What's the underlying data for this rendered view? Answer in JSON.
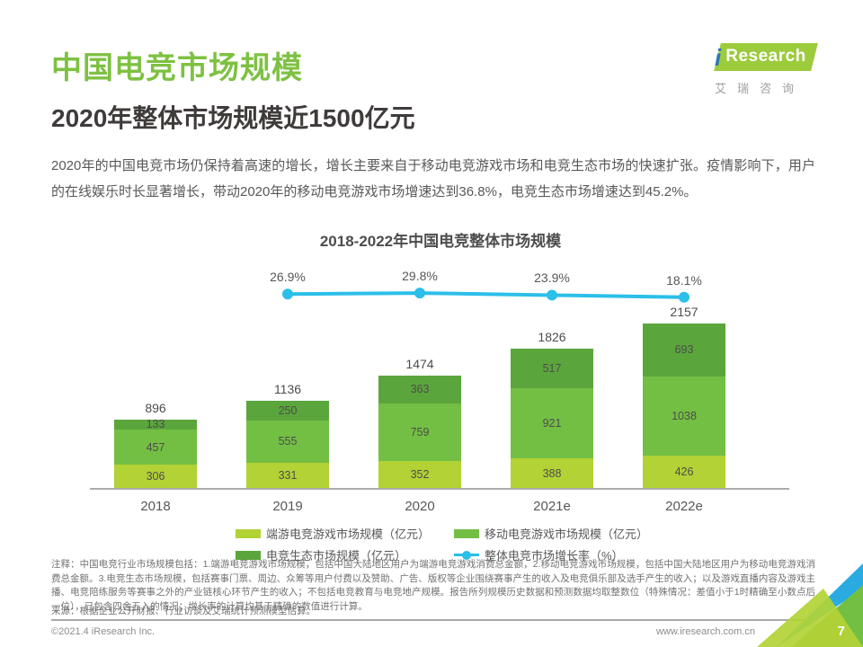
{
  "page": {
    "title": "中国电竞市场规模",
    "subtitle": "2020年整体市场规模近1500亿元",
    "body": "2020年的中国电竞市场仍保持着高速的增长，增长主要来自于移动电竞游戏市场和电竞生态市场的快速扩张。疫情影响下，用户的在线娱乐时长显著增长，带动2020年的移动电竞游戏市场增速达到36.8%，电竞生态市场增速达到45.2%。"
  },
  "logo": {
    "brand_i": "i",
    "brand_rest": "Research",
    "brand_cn": "艾瑞咨询"
  },
  "chart_data": {
    "type": "bar",
    "subtype": "stacked-bar-with-line",
    "title": "2018-2022年中国电竞整体市场规模",
    "categories": [
      "2018",
      "2019",
      "2020",
      "2021e",
      "2022e"
    ],
    "series": [
      {
        "name": "端游电竞游戏市场规模（亿元）",
        "color": "#B2D235",
        "values": [
          306,
          331,
          352,
          388,
          426
        ]
      },
      {
        "name": "移动电竞游戏市场规模（亿元）",
        "color": "#73BF44",
        "values": [
          457,
          555,
          759,
          921,
          1038
        ]
      },
      {
        "name": "电竞生态市场规模（亿元）",
        "color": "#5AA63C",
        "values": [
          133,
          250,
          363,
          517,
          693
        ]
      }
    ],
    "totals": [
      896,
      1136,
      1474,
      1826,
      2157
    ],
    "growth_line": {
      "name": "整体电竞市场增长率（%）",
      "color": "#2BBFE9",
      "x_categories": [
        "2019",
        "2020",
        "2021e",
        "2022e"
      ],
      "values": [
        26.9,
        29.8,
        23.9,
        18.1
      ]
    },
    "ylabel": "",
    "xlabel": "",
    "grid": false,
    "legend_position": "bottom"
  },
  "notes": {
    "annotation": "注释：中国电竞行业市场规模包括：1.端游电竞游戏市场规模，包括中国大陆地区用户为端游电竞游戏消费总金额，2.移动电竞游戏市场规模，包括中国大陆地区用户为移动电竞游戏消费总金额。3.电竞生态市场规模，包括赛事门票、周边、众筹等用户付费以及赞助、广告、版权等企业围绕赛事产生的收入及电竞俱乐部及选手产生的收入；以及游戏直播内容及游戏主播、电竞陪练服务等赛事之外的产业链核心环节产生的收入；不包括电竞教育与电竞地产规模。报告所列规模历史数据和预测数据均取整数位（特殊情况：差值小于1时精确至小数点后一位），已包含四舍五入的情况；增长率的计算均基于精确的数值进行计算。",
    "source": "来源：根据企业公开财报、行业访谈及艾瑞统计预测模型估算。"
  },
  "footer": {
    "copyright": "©2021.4 iResearch Inc.",
    "website": "www.iresearch.com.cn",
    "page_number": "7"
  }
}
